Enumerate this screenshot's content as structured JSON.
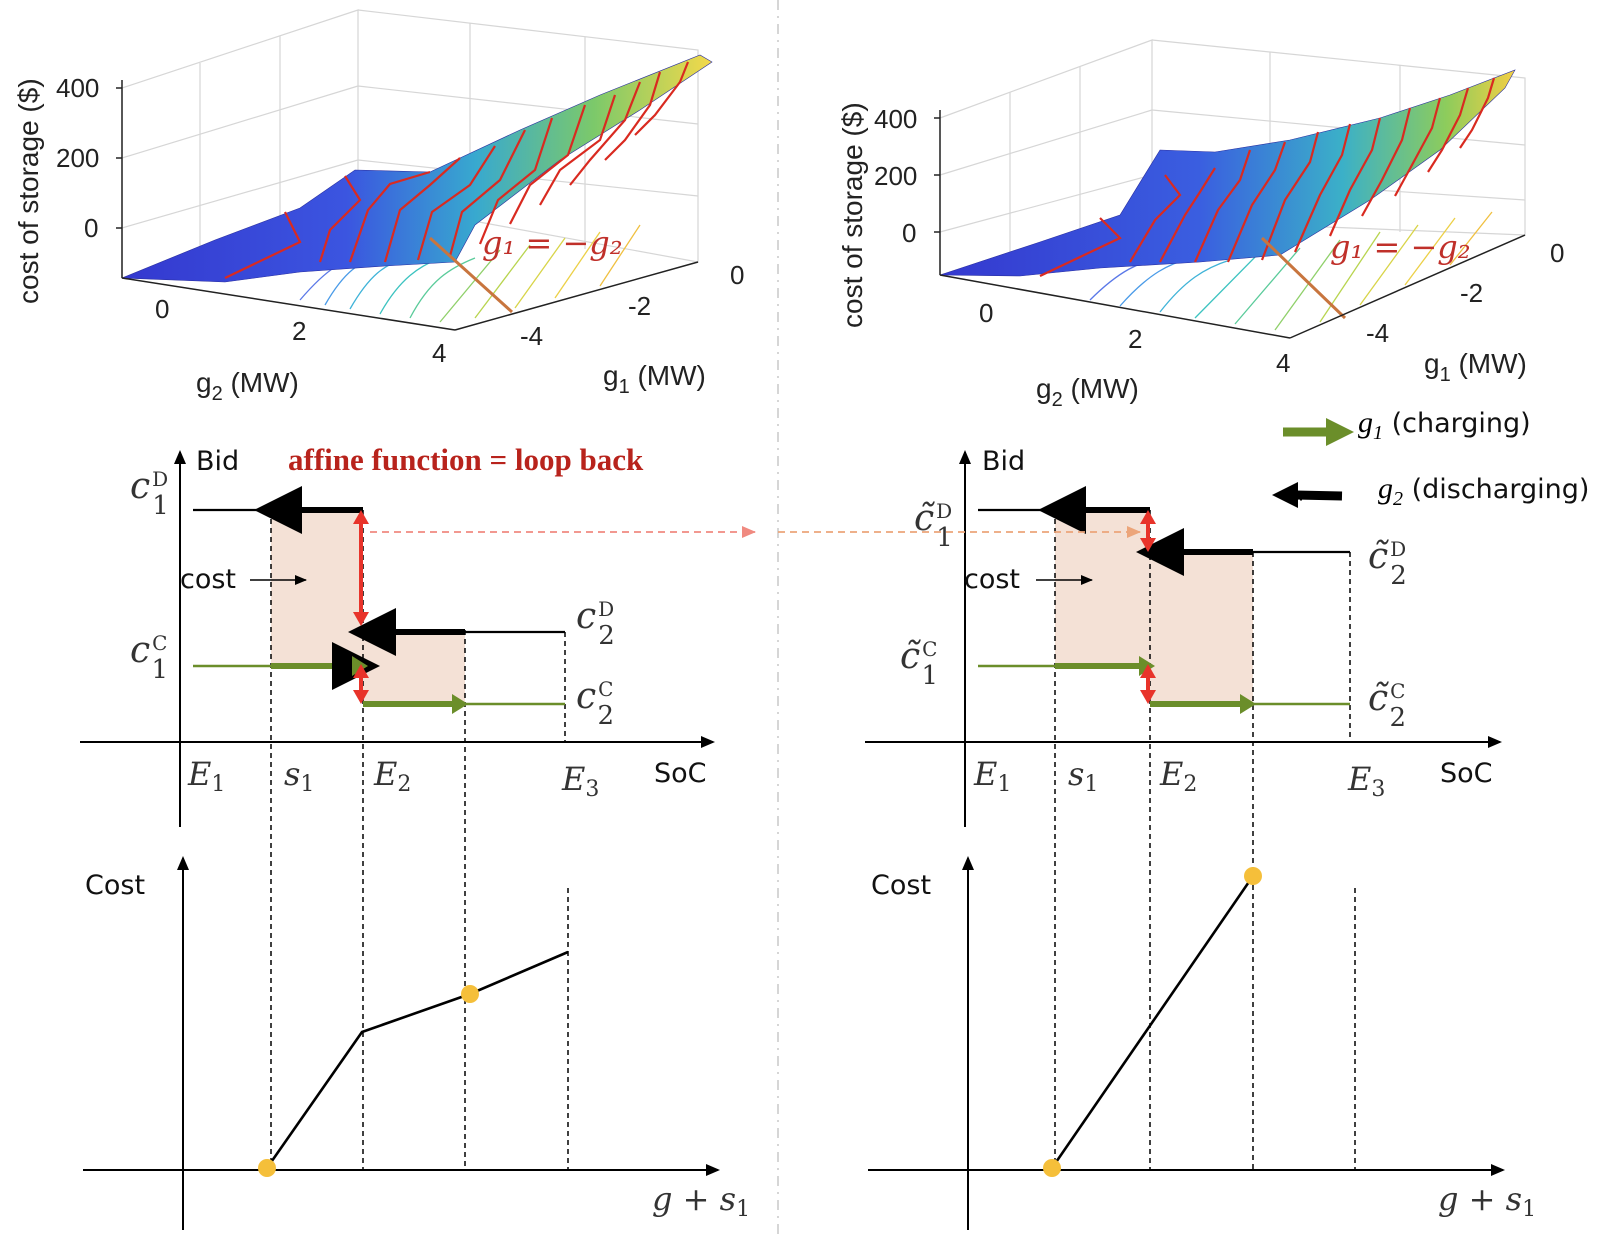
{
  "colors": {
    "surface_low": "#3a3fd6",
    "surface_mid": "#3cb0c8",
    "surface_high": "#f1d94a",
    "contour_red": "#d92a20",
    "cut_line": "#c8753e",
    "charge_green": "#6b8e2a",
    "red_arrow": "#e8332a",
    "cost_fill": "#f4e1d6",
    "point": "#f5bf3a",
    "title_red": "#b8231c"
  },
  "top_left_3d": {
    "zlabel": "cost of storage ($)",
    "zticks": [
      "400",
      "200",
      "0"
    ],
    "xlabel": "g",
    "xlabel_sub": "2",
    "xlabel_unit": " (MW)",
    "xticks": [
      "0",
      "2",
      "4"
    ],
    "ylabel": "g",
    "ylabel_sub": "1",
    "ylabel_unit": " (MW)",
    "yticks": [
      "0",
      "-2",
      "-4"
    ],
    "annotation": "g₁ = −g₂"
  },
  "top_right_3d": {
    "zlabel": "cost of storage ($)",
    "zticks": [
      "400",
      "200",
      "0"
    ],
    "xlabel": "g",
    "xlabel_sub": "2",
    "xlabel_unit": " (MW)",
    "xticks": [
      "0",
      "2",
      "4"
    ],
    "ylabel": "g",
    "ylabel_sub": "1",
    "ylabel_unit": " (MW)",
    "yticks": [
      "0",
      "-2",
      "-4"
    ],
    "annotation": "g₁ = −g₂"
  },
  "legend": {
    "charging_var": "g",
    "charging_sub": "1",
    "charging_text": " (charging)",
    "discharging_var": "g",
    "discharging_sub": "2",
    "discharging_text": " (discharging)"
  },
  "bid_title": "affine function = loop back",
  "bid_left": {
    "ylabel": "Bid",
    "xlabel": "SoC",
    "cost_label": "cost",
    "c1D": "c",
    "c1D_sup": "D",
    "c1D_sub": "1",
    "c1C": "c",
    "c1C_sup": "C",
    "c1C_sub": "1",
    "c2D": "c",
    "c2D_sup": "D",
    "c2D_sub": "2",
    "c2C": "c",
    "c2C_sup": "C",
    "c2C_sub": "2",
    "x_marks": [
      "E",
      "s",
      "E",
      "E"
    ],
    "x_subs": [
      "1",
      "1",
      "2",
      "3"
    ]
  },
  "bid_right": {
    "ylabel": "Bid",
    "xlabel": "SoC",
    "cost_label": "cost",
    "c1D": "c̃",
    "c1D_sup": "D",
    "c1D_sub": "1",
    "c1C": "c̃",
    "c1C_sup": "C",
    "c1C_sub": "1",
    "c2D": "c̃",
    "c2D_sup": "D",
    "c2D_sub": "2",
    "c2C": "c̃",
    "c2C_sup": "C",
    "c2C_sub": "2",
    "x_marks": [
      "E",
      "s",
      "E",
      "E"
    ],
    "x_subs": [
      "1",
      "1",
      "2",
      "3"
    ]
  },
  "cost_left": {
    "ylabel": "Cost",
    "xlabel": "g + s",
    "xlabel_sub": "1"
  },
  "cost_right": {
    "ylabel": "Cost",
    "xlabel": "g + s",
    "xlabel_sub": "1"
  }
}
